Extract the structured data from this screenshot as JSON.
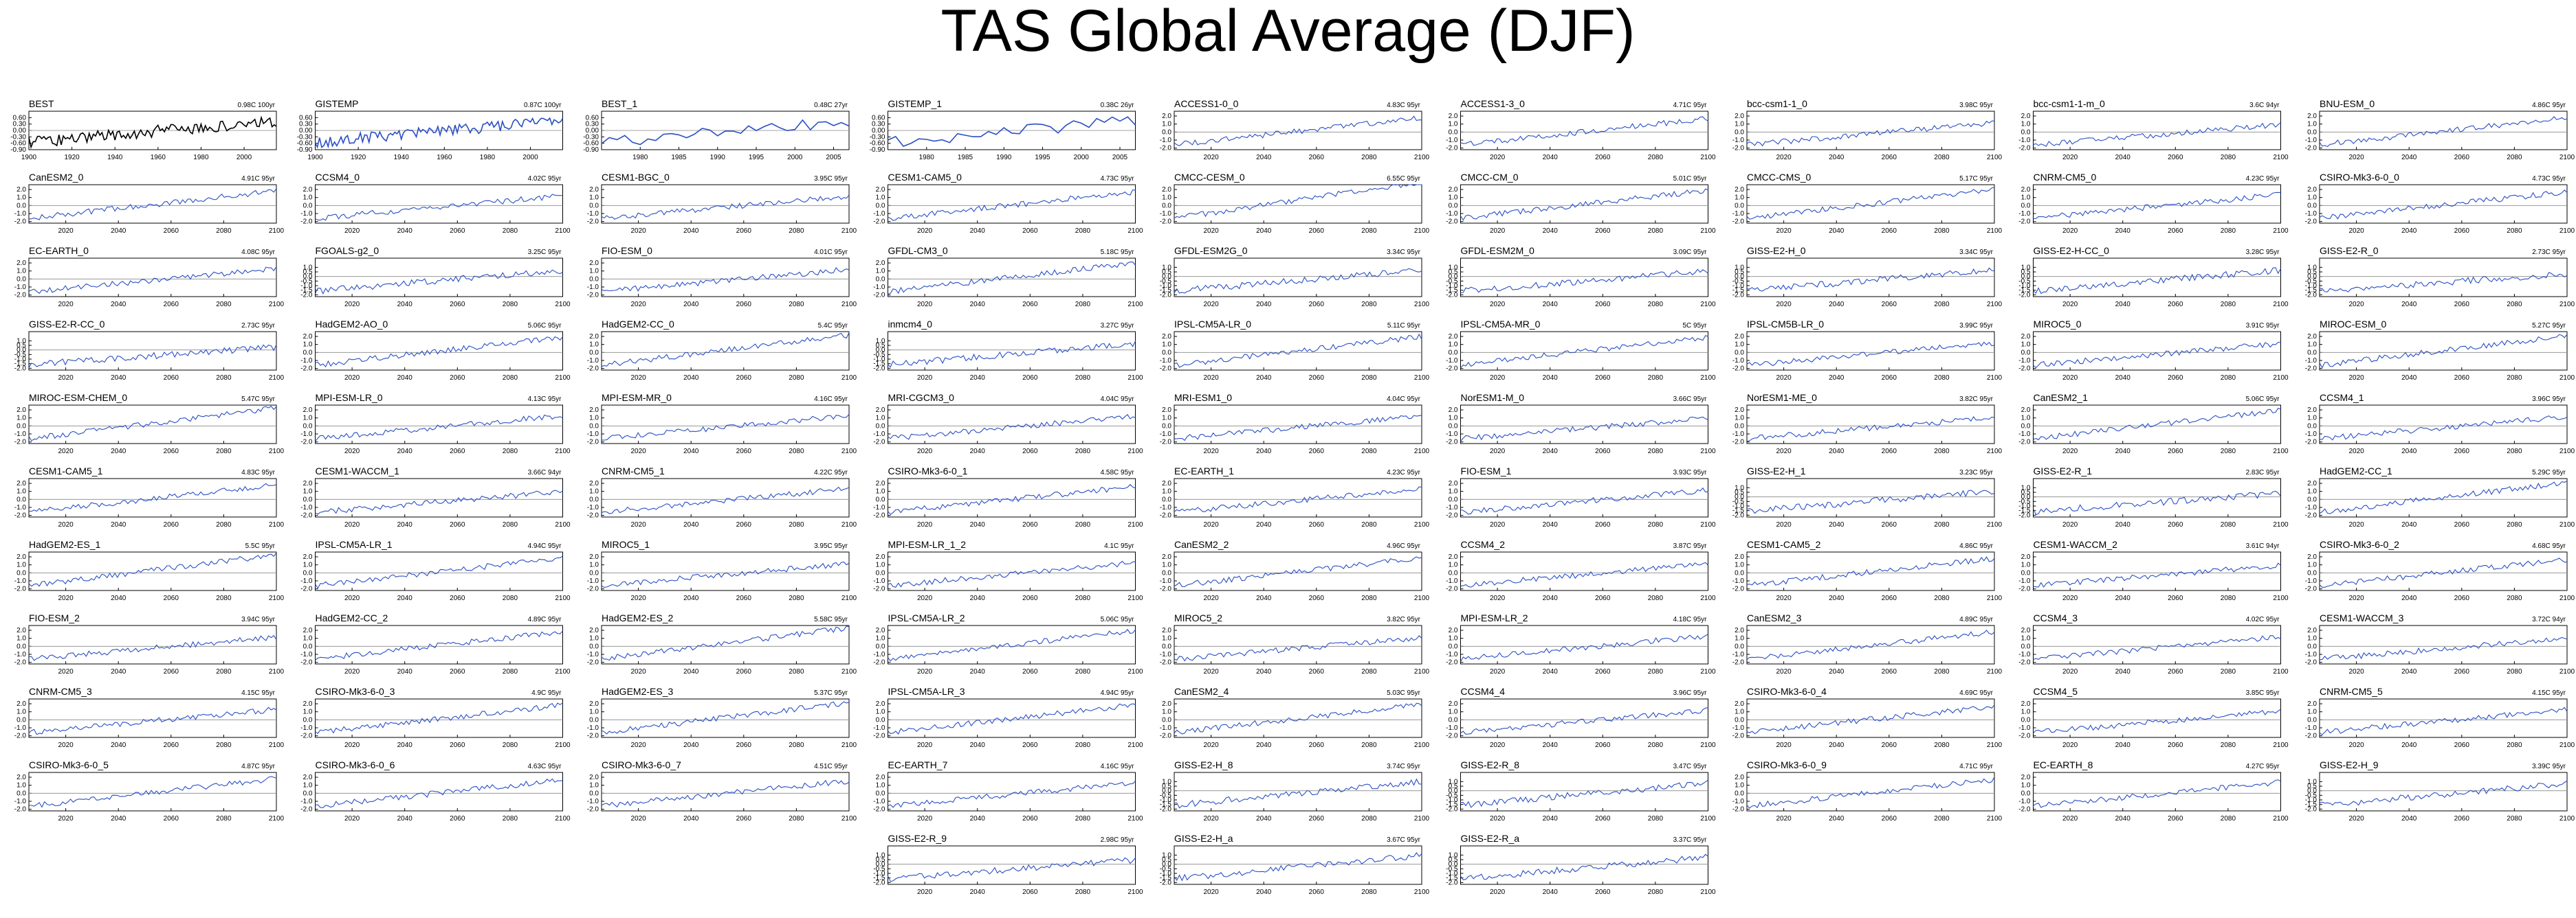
{
  "title": "TAS Global Average (DJF)",
  "colors": {
    "model_line": "#2a4fc4",
    "obs_line": "#000000",
    "reference_line": "#888888"
  },
  "axes": {
    "obs_best": {
      "xlim": [
        1900,
        2015
      ],
      "ylim": [
        -0.9,
        0.9
      ],
      "xticks": [
        "1900",
        "1920",
        "1940",
        "1960",
        "1980",
        "2000"
      ],
      "yticks": [
        "0.60",
        "0.30",
        "0.00",
        "-0.30",
        "-0.60",
        "-0.90"
      ]
    },
    "obs_short": {
      "xlim": [
        1975,
        2007
      ],
      "ylim": [
        -0.9,
        0.9
      ],
      "xticks": [
        "1980",
        "1985",
        "1990",
        "1995",
        "2000",
        "2005"
      ],
      "yticks": [
        "0.60",
        "0.30",
        "0.00",
        "-0.30",
        "-0.60",
        "-0.90"
      ]
    },
    "model": {
      "xlim": [
        2006,
        2100
      ],
      "ylim": [
        -2.2,
        2.6
      ],
      "xticks": [
        "2020",
        "2040",
        "2060",
        "2080",
        "2100"
      ],
      "yticks": [
        "2.0",
        "1.0",
        "0.0",
        "-1.0",
        "-2.0"
      ]
    },
    "model_low": {
      "xlim": [
        2006,
        2100
      ],
      "ylim": [
        -2.2,
        2.0
      ],
      "xticks": [
        "2020",
        "2040",
        "2060",
        "2080",
        "2100"
      ],
      "yticks": [
        "1.0",
        "0.5",
        "0.0",
        "-0.5",
        "-1.0",
        "-1.5",
        "-2.0"
      ]
    }
  },
  "chart_data": [
    {
      "name": "BEST",
      "trend": "0.98C 100yr",
      "axes": "obs_best",
      "type": "line"
    },
    {
      "name": "GISTEMP",
      "trend": "0.87C 100yr",
      "axes": "obs_best",
      "type": "line"
    },
    {
      "name": "BEST_1",
      "trend": "0.48C 27yr",
      "axes": "obs_short",
      "type": "line"
    },
    {
      "name": "GISTEMP_1",
      "trend": "0.38C 26yr",
      "axes": "obs_short",
      "type": "line"
    },
    {
      "name": "ACCESS1-0_0",
      "trend": "4.83C 95yr",
      "axes": "model",
      "type": "line"
    },
    {
      "name": "ACCESS1-3_0",
      "trend": "4.71C 95yr",
      "axes": "model",
      "type": "line"
    },
    {
      "name": "bcc-csm1-1_0",
      "trend": "3.98C 95yr",
      "axes": "model",
      "type": "line"
    },
    {
      "name": "bcc-csm1-1-m_0",
      "trend": "3.6C 94yr",
      "axes": "model",
      "type": "line"
    },
    {
      "name": "BNU-ESM_0",
      "trend": "4.86C 95yr",
      "axes": "model",
      "type": "line"
    },
    {
      "name": "CanESM2_0",
      "trend": "4.91C 95yr",
      "axes": "model",
      "type": "line"
    },
    {
      "name": "CCSM4_0",
      "trend": "4.02C 95yr",
      "axes": "model",
      "type": "line"
    },
    {
      "name": "CESM1-BGC_0",
      "trend": "3.95C 95yr",
      "axes": "model",
      "type": "line"
    },
    {
      "name": "CESM1-CAM5_0",
      "trend": "4.73C 95yr",
      "axes": "model",
      "type": "line"
    },
    {
      "name": "CMCC-CESM_0",
      "trend": "6.55C 95yr",
      "axes": "model",
      "type": "line"
    },
    {
      "name": "CMCC-CM_0",
      "trend": "5.01C 95yr",
      "axes": "model",
      "type": "line"
    },
    {
      "name": "CMCC-CMS_0",
      "trend": "5.17C 95yr",
      "axes": "model",
      "type": "line"
    },
    {
      "name": "CNRM-CM5_0",
      "trend": "4.23C 95yr",
      "axes": "model",
      "type": "line"
    },
    {
      "name": "CSIRO-Mk3-6-0_0",
      "trend": "4.73C 95yr",
      "axes": "model",
      "type": "line"
    },
    {
      "name": "EC-EARTH_0",
      "trend": "4.08C 95yr",
      "axes": "model",
      "type": "line"
    },
    {
      "name": "FGOALS-g2_0",
      "trend": "3.25C 95yr",
      "axes": "model_low",
      "type": "line"
    },
    {
      "name": "FIO-ESM_0",
      "trend": "4.01C 95yr",
      "axes": "model",
      "type": "line"
    },
    {
      "name": "GFDL-CM3_0",
      "trend": "5.18C 95yr",
      "axes": "model",
      "type": "line"
    },
    {
      "name": "GFDL-ESM2G_0",
      "trend": "3.34C 95yr",
      "axes": "model_low",
      "type": "line"
    },
    {
      "name": "GFDL-ESM2M_0",
      "trend": "3.09C 95yr",
      "axes": "model_low",
      "type": "line"
    },
    {
      "name": "GISS-E2-H_0",
      "trend": "3.34C 95yr",
      "axes": "model_low",
      "type": "line"
    },
    {
      "name": "GISS-E2-H-CC_0",
      "trend": "3.28C 95yr",
      "axes": "model_low",
      "type": "line"
    },
    {
      "name": "GISS-E2-R_0",
      "trend": "2.73C 95yr",
      "axes": "model_low",
      "type": "line"
    },
    {
      "name": "GISS-E2-R-CC_0",
      "trend": "2.73C 95yr",
      "axes": "model_low",
      "type": "line"
    },
    {
      "name": "HadGEM2-AO_0",
      "trend": "5.06C 95yr",
      "axes": "model",
      "type": "line"
    },
    {
      "name": "HadGEM2-CC_0",
      "trend": "5.4C 95yr",
      "axes": "model",
      "type": "line"
    },
    {
      "name": "inmcm4_0",
      "trend": "3.27C 95yr",
      "axes": "model_low",
      "type": "line"
    },
    {
      "name": "IPSL-CM5A-LR_0",
      "trend": "5.11C 95yr",
      "axes": "model",
      "type": "line"
    },
    {
      "name": "IPSL-CM5A-MR_0",
      "trend": "5C 95yr",
      "axes": "model",
      "type": "line"
    },
    {
      "name": "IPSL-CM5B-LR_0",
      "trend": "3.99C 95yr",
      "axes": "model",
      "type": "line"
    },
    {
      "name": "MIROC5_0",
      "trend": "3.91C 95yr",
      "axes": "model",
      "type": "line"
    },
    {
      "name": "MIROC-ESM_0",
      "trend": "5.27C 95yr",
      "axes": "model",
      "type": "line"
    },
    {
      "name": "MIROC-ESM-CHEM_0",
      "trend": "5.47C 95yr",
      "axes": "model",
      "type": "line"
    },
    {
      "name": "MPI-ESM-LR_0",
      "trend": "4.13C 95yr",
      "axes": "model",
      "type": "line"
    },
    {
      "name": "MPI-ESM-MR_0",
      "trend": "4.16C 95yr",
      "axes": "model",
      "type": "line"
    },
    {
      "name": "MRI-CGCM3_0",
      "trend": "4.04C 95yr",
      "axes": "model",
      "type": "line"
    },
    {
      "name": "MRI-ESM1_0",
      "trend": "4.04C 95yr",
      "axes": "model",
      "type": "line"
    },
    {
      "name": "NorESM1-M_0",
      "trend": "3.66C 95yr",
      "axes": "model",
      "type": "line"
    },
    {
      "name": "NorESM1-ME_0",
      "trend": "3.82C 95yr",
      "axes": "model",
      "type": "line"
    },
    {
      "name": "CanESM2_1",
      "trend": "5.06C 95yr",
      "axes": "model",
      "type": "line"
    },
    {
      "name": "CCSM4_1",
      "trend": "3.96C 95yr",
      "axes": "model",
      "type": "line"
    },
    {
      "name": "CESM1-CAM5_1",
      "trend": "4.83C 95yr",
      "axes": "model",
      "type": "line"
    },
    {
      "name": "CESM1-WACCM_1",
      "trend": "3.66C 94yr",
      "axes": "model",
      "type": "line"
    },
    {
      "name": "CNRM-CM5_1",
      "trend": "4.22C 95yr",
      "axes": "model",
      "type": "line"
    },
    {
      "name": "CSIRO-Mk3-6-0_1",
      "trend": "4.58C 95yr",
      "axes": "model",
      "type": "line"
    },
    {
      "name": "EC-EARTH_1",
      "trend": "4.23C 95yr",
      "axes": "model",
      "type": "line"
    },
    {
      "name": "FIO-ESM_1",
      "trend": "3.93C 95yr",
      "axes": "model",
      "type": "line"
    },
    {
      "name": "GISS-E2-H_1",
      "trend": "3.23C 95yr",
      "axes": "model_low",
      "type": "line"
    },
    {
      "name": "GISS-E2-R_1",
      "trend": "2.83C 95yr",
      "axes": "model_low",
      "type": "line"
    },
    {
      "name": "HadGEM2-CC_1",
      "trend": "5.29C 95yr",
      "axes": "model",
      "type": "line"
    },
    {
      "name": "HadGEM2-ES_1",
      "trend": "5.5C 95yr",
      "axes": "model",
      "type": "line"
    },
    {
      "name": "IPSL-CM5A-LR_1",
      "trend": "4.94C 95yr",
      "axes": "model",
      "type": "line"
    },
    {
      "name": "MIROC5_1",
      "trend": "3.95C 95yr",
      "axes": "model",
      "type": "line"
    },
    {
      "name": "MPI-ESM-LR_1_2",
      "trend": "4.1C 95yr",
      "axes": "model",
      "type": "line"
    },
    {
      "name": "CanESM2_2",
      "trend": "4.96C 95yr",
      "axes": "model",
      "type": "line"
    },
    {
      "name": "CCSM4_2",
      "trend": "3.87C 95yr",
      "axes": "model",
      "type": "line"
    },
    {
      "name": "CESM1-CAM5_2",
      "trend": "4.86C 95yr",
      "axes": "model",
      "type": "line"
    },
    {
      "name": "CESM1-WACCM_2",
      "trend": "3.61C 94yr",
      "axes": "model",
      "type": "line"
    },
    {
      "name": "CSIRO-Mk3-6-0_2",
      "trend": "4.68C 95yr",
      "axes": "model",
      "type": "line"
    },
    {
      "name": "FIO-ESM_2",
      "trend": "3.94C 95yr",
      "axes": "model",
      "type": "line"
    },
    {
      "name": "HadGEM2-CC_2",
      "trend": "4.89C 95yr",
      "axes": "model",
      "type": "line"
    },
    {
      "name": "HadGEM2-ES_2",
      "trend": "5.58C 95yr",
      "axes": "model",
      "type": "line"
    },
    {
      "name": "IPSL-CM5A-LR_2",
      "trend": "5.06C 95yr",
      "axes": "model",
      "type": "line"
    },
    {
      "name": "MIROC5_2",
      "trend": "3.82C 95yr",
      "axes": "model",
      "type": "line"
    },
    {
      "name": "MPI-ESM-LR_2",
      "trend": "4.18C 95yr",
      "axes": "model",
      "type": "line"
    },
    {
      "name": "CanESM2_3",
      "trend": "4.89C 95yr",
      "axes": "model",
      "type": "line"
    },
    {
      "name": "CCSM4_3",
      "trend": "4.02C 95yr",
      "axes": "model",
      "type": "line"
    },
    {
      "name": "CESM1-WACCM_3",
      "trend": "3.72C 94yr",
      "axes": "model",
      "type": "line"
    },
    {
      "name": "CNRM-CM5_3",
      "trend": "4.15C 95yr",
      "axes": "model",
      "type": "line"
    },
    {
      "name": "CSIRO-Mk3-6-0_3",
      "trend": "4.9C 95yr",
      "axes": "model",
      "type": "line"
    },
    {
      "name": "HadGEM2-ES_3",
      "trend": "5.37C 95yr",
      "axes": "model",
      "type": "line"
    },
    {
      "name": "IPSL-CM5A-LR_3",
      "trend": "4.94C 95yr",
      "axes": "model",
      "type": "line"
    },
    {
      "name": "CanESM2_4",
      "trend": "5.03C 95yr",
      "axes": "model",
      "type": "line"
    },
    {
      "name": "CCSM4_4",
      "trend": "3.96C 95yr",
      "axes": "model",
      "type": "line"
    },
    {
      "name": "CSIRO-Mk3-6-0_4",
      "trend": "4.69C 95yr",
      "axes": "model",
      "type": "line"
    },
    {
      "name": "CCSM4_5",
      "trend": "3.85C 95yr",
      "axes": "model",
      "type": "line"
    },
    {
      "name": "CNRM-CM5_5",
      "trend": "4.15C 95yr",
      "axes": "model",
      "type": "line"
    },
    {
      "name": "CSIRO-Mk3-6-0_5",
      "trend": "4.87C 95yr",
      "axes": "model",
      "type": "line"
    },
    {
      "name": "CSIRO-Mk3-6-0_6",
      "trend": "4.63C 95yr",
      "axes": "model",
      "type": "line"
    },
    {
      "name": "CSIRO-Mk3-6-0_7",
      "trend": "4.51C 95yr",
      "axes": "model",
      "type": "line"
    },
    {
      "name": "EC-EARTH_7",
      "trend": "4.16C 95yr",
      "axes": "model",
      "type": "line"
    },
    {
      "name": "GISS-E2-H_8",
      "trend": "3.74C 95yr",
      "axes": "model_low",
      "type": "line"
    },
    {
      "name": "GISS-E2-R_8",
      "trend": "3.47C 95yr",
      "axes": "model_low",
      "type": "line"
    },
    {
      "name": "CSIRO-Mk3-6-0_9",
      "trend": "4.71C 95yr",
      "axes": "model",
      "type": "line"
    },
    {
      "name": "EC-EARTH_8",
      "trend": "4.27C 95yr",
      "axes": "model",
      "type": "line"
    },
    {
      "name": "GISS-E2-H_9",
      "trend": "3.39C 95yr",
      "axes": "model_low",
      "type": "line"
    },
    {
      "name": "GISS-E2-R_9",
      "trend": "2.98C 95yr",
      "axes": "model_low",
      "type": "line"
    },
    {
      "name": "GISS-E2-H_a",
      "trend": "3.67C 95yr",
      "axes": "model_low",
      "type": "line"
    },
    {
      "name": "GISS-E2-R_a",
      "trend": "3.37C 95yr",
      "axes": "model_low",
      "type": "line"
    }
  ]
}
